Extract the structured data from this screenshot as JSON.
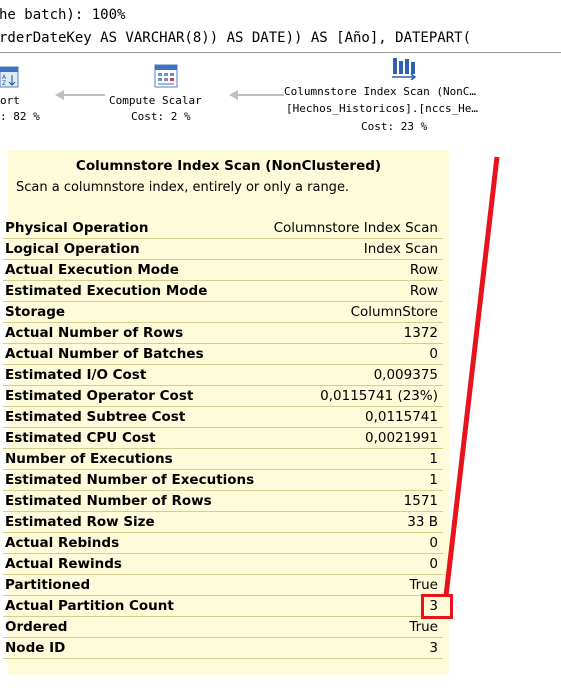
{
  "query": {
    "line1": "he batch): 100%",
    "line2": "rderDateKey AS VARCHAR(8)) AS DATE)) AS [Año], DATEPART("
  },
  "plan": {
    "sort": {
      "name": "ort",
      "cost": ": 82 %"
    },
    "compute_scalar": {
      "name": "Compute Scalar",
      "cost": "Cost: 2 %"
    },
    "index_scan": {
      "name": "Columnstore Index Scan (NonC…",
      "object": "[Hechos_Historicos].[nccs_He…",
      "cost": "Cost: 23 %"
    }
  },
  "tooltip": {
    "title": "Columnstore Index Scan (NonClustered)",
    "description": "Scan a columnstore index, entirely or only a range.",
    "properties": [
      {
        "name": "Physical Operation",
        "value": "Columnstore Index Scan"
      },
      {
        "name": "Logical Operation",
        "value": "Index Scan"
      },
      {
        "name": "Actual Execution Mode",
        "value": "Row"
      },
      {
        "name": "Estimated Execution Mode",
        "value": "Row"
      },
      {
        "name": "Storage",
        "value": "ColumnStore"
      },
      {
        "name": "Actual Number of Rows",
        "value": "1372"
      },
      {
        "name": "Actual Number of Batches",
        "value": "0"
      },
      {
        "name": "Estimated I/O Cost",
        "value": "0,009375"
      },
      {
        "name": "Estimated Operator Cost",
        "value": "0,0115741 (23%)"
      },
      {
        "name": "Estimated Subtree Cost",
        "value": "0,0115741"
      },
      {
        "name": "Estimated CPU Cost",
        "value": "0,0021991"
      },
      {
        "name": "Number of Executions",
        "value": "1"
      },
      {
        "name": "Estimated Number of Executions",
        "value": "1"
      },
      {
        "name": "Estimated Number of Rows",
        "value": "1571"
      },
      {
        "name": "Estimated Row Size",
        "value": "33 B"
      },
      {
        "name": "Actual Rebinds",
        "value": "0"
      },
      {
        "name": "Actual Rewinds",
        "value": "0"
      },
      {
        "name": "Partitioned",
        "value": "True"
      },
      {
        "name": "Actual Partition Count",
        "value": "3"
      },
      {
        "name": "Ordered",
        "value": "True"
      },
      {
        "name": "Node ID",
        "value": "3"
      }
    ]
  },
  "colors": {
    "highlight": "#e8141c",
    "tooltip_bg": "#fdfbd9"
  },
  "icons": [
    "sort-icon",
    "compute-scalar-icon",
    "columnstore-index-scan-icon"
  ]
}
